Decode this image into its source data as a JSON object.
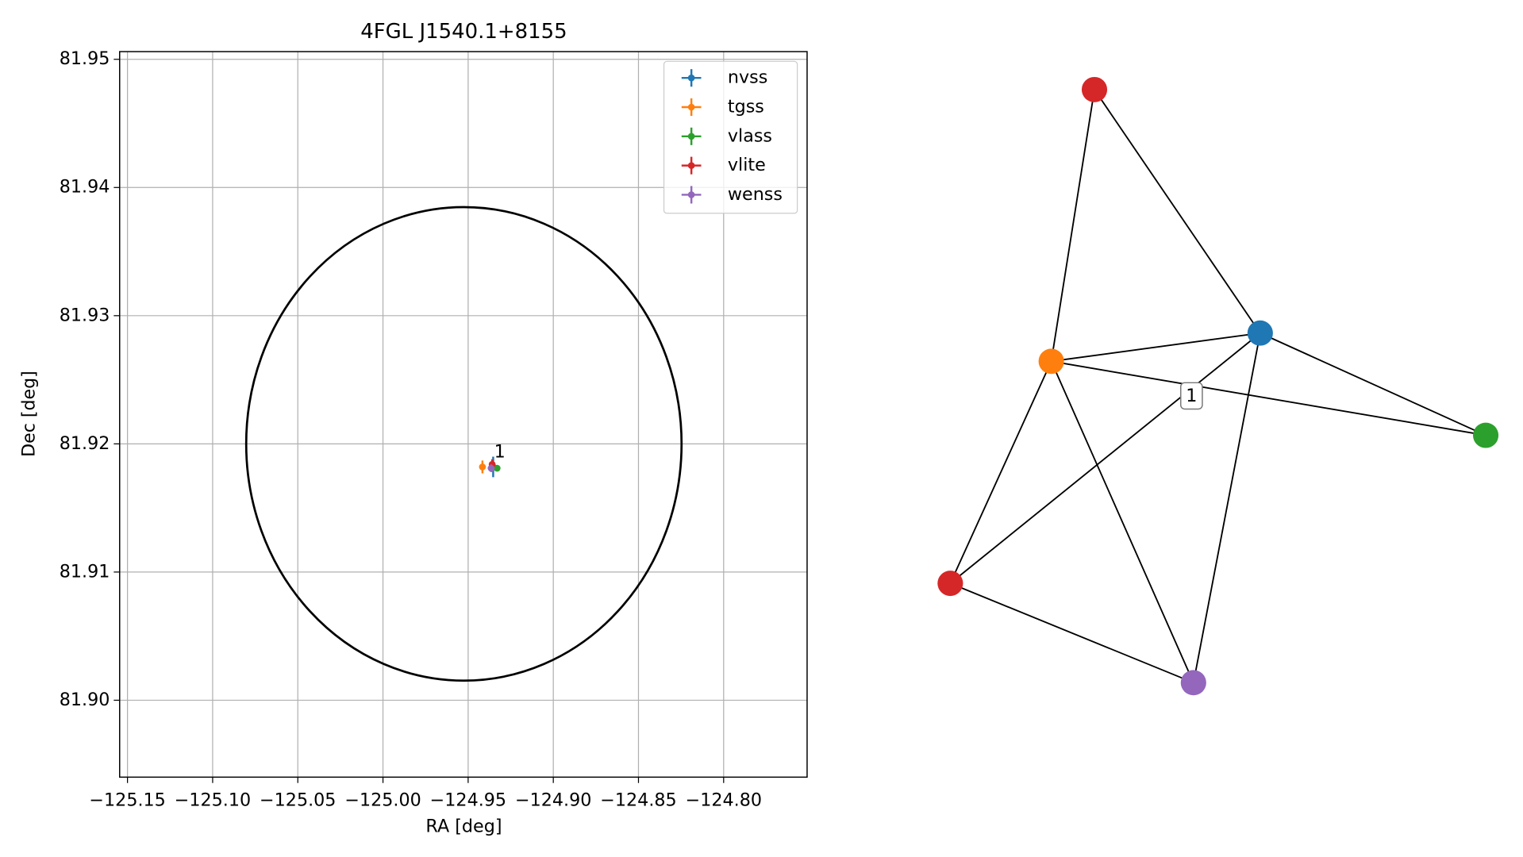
{
  "chart_data": [
    {
      "type": "scatter",
      "title": "4FGL J1540.1+8155",
      "xlabel": "RA [deg]",
      "ylabel": "Dec [deg]",
      "xlim": [
        -125.1546,
        -124.751
      ],
      "ylim": [
        81.894,
        81.9506
      ],
      "xticks": [
        {
          "value": -125.15,
          "label": "−125.15"
        },
        {
          "value": -125.1,
          "label": "−125.10"
        },
        {
          "value": -125.05,
          "label": "−125.05"
        },
        {
          "value": -125.0,
          "label": "−125.00"
        },
        {
          "value": -124.95,
          "label": "−124.95"
        },
        {
          "value": -124.9,
          "label": "−124.90"
        },
        {
          "value": -124.85,
          "label": "−124.85"
        },
        {
          "value": -124.8,
          "label": "−124.80"
        }
      ],
      "yticks": [
        {
          "value": 81.9,
          "label": "81.90"
        },
        81.91,
        81.92,
        81.93,
        81.94,
        81.95
      ],
      "grid": true,
      "legend": "upper right",
      "series": [
        {
          "name": "nvss",
          "color": "#1f77b4",
          "x": [
            -124.9353
          ],
          "y": [
            81.9182
          ],
          "xerr": [
            0.0008
          ],
          "yerr": [
            0.0008
          ]
        },
        {
          "name": "tgss",
          "color": "#ff7f0e",
          "x": [
            -124.9416
          ],
          "y": [
            81.9182
          ],
          "xerr": [
            0.001
          ],
          "yerr": [
            0.0005
          ]
        },
        {
          "name": "vlass",
          "color": "#2ca02c",
          "x": [
            -124.933
          ],
          "y": [
            81.9181
          ],
          "xerr": [
            0.0017
          ],
          "yerr": [
            0.0002
          ]
        },
        {
          "name": "vlite",
          "color": "#d62728",
          "x": [
            -124.9359
          ],
          "y": [
            81.9184
          ],
          "xerr": [
            0.0006
          ],
          "yerr": [
            0.0004
          ]
        },
        {
          "name": "wenss",
          "color": "#9467bd",
          "x": [
            -124.9365
          ],
          "y": [
            81.9181
          ],
          "xerr": [
            0.002
          ],
          "yerr": [
            0.0003
          ]
        }
      ],
      "ellipse": {
        "x": -124.9525,
        "y": 81.92,
        "x_radius": 0.1278,
        "y_radius": 0.01847,
        "color": "#000000"
      },
      "annotation": "1"
    },
    {
      "type": "network",
      "nodes": [
        {
          "color": "#1f77b4"
        },
        {
          "color": "#ff7f0e"
        },
        {
          "color": "#2ca02c"
        },
        {
          "color": "#d62728"
        },
        {
          "color": "#d62728"
        },
        {
          "color": "#9467bd"
        }
      ],
      "edges": [
        [
          3,
          1
        ],
        [
          3,
          0
        ],
        [
          1,
          0
        ],
        [
          1,
          2
        ],
        [
          1,
          4
        ],
        [
          1,
          5
        ],
        [
          0,
          4
        ],
        [
          0,
          5
        ],
        [
          0,
          2
        ],
        [
          4,
          5
        ]
      ],
      "edge_label": "1"
    }
  ]
}
